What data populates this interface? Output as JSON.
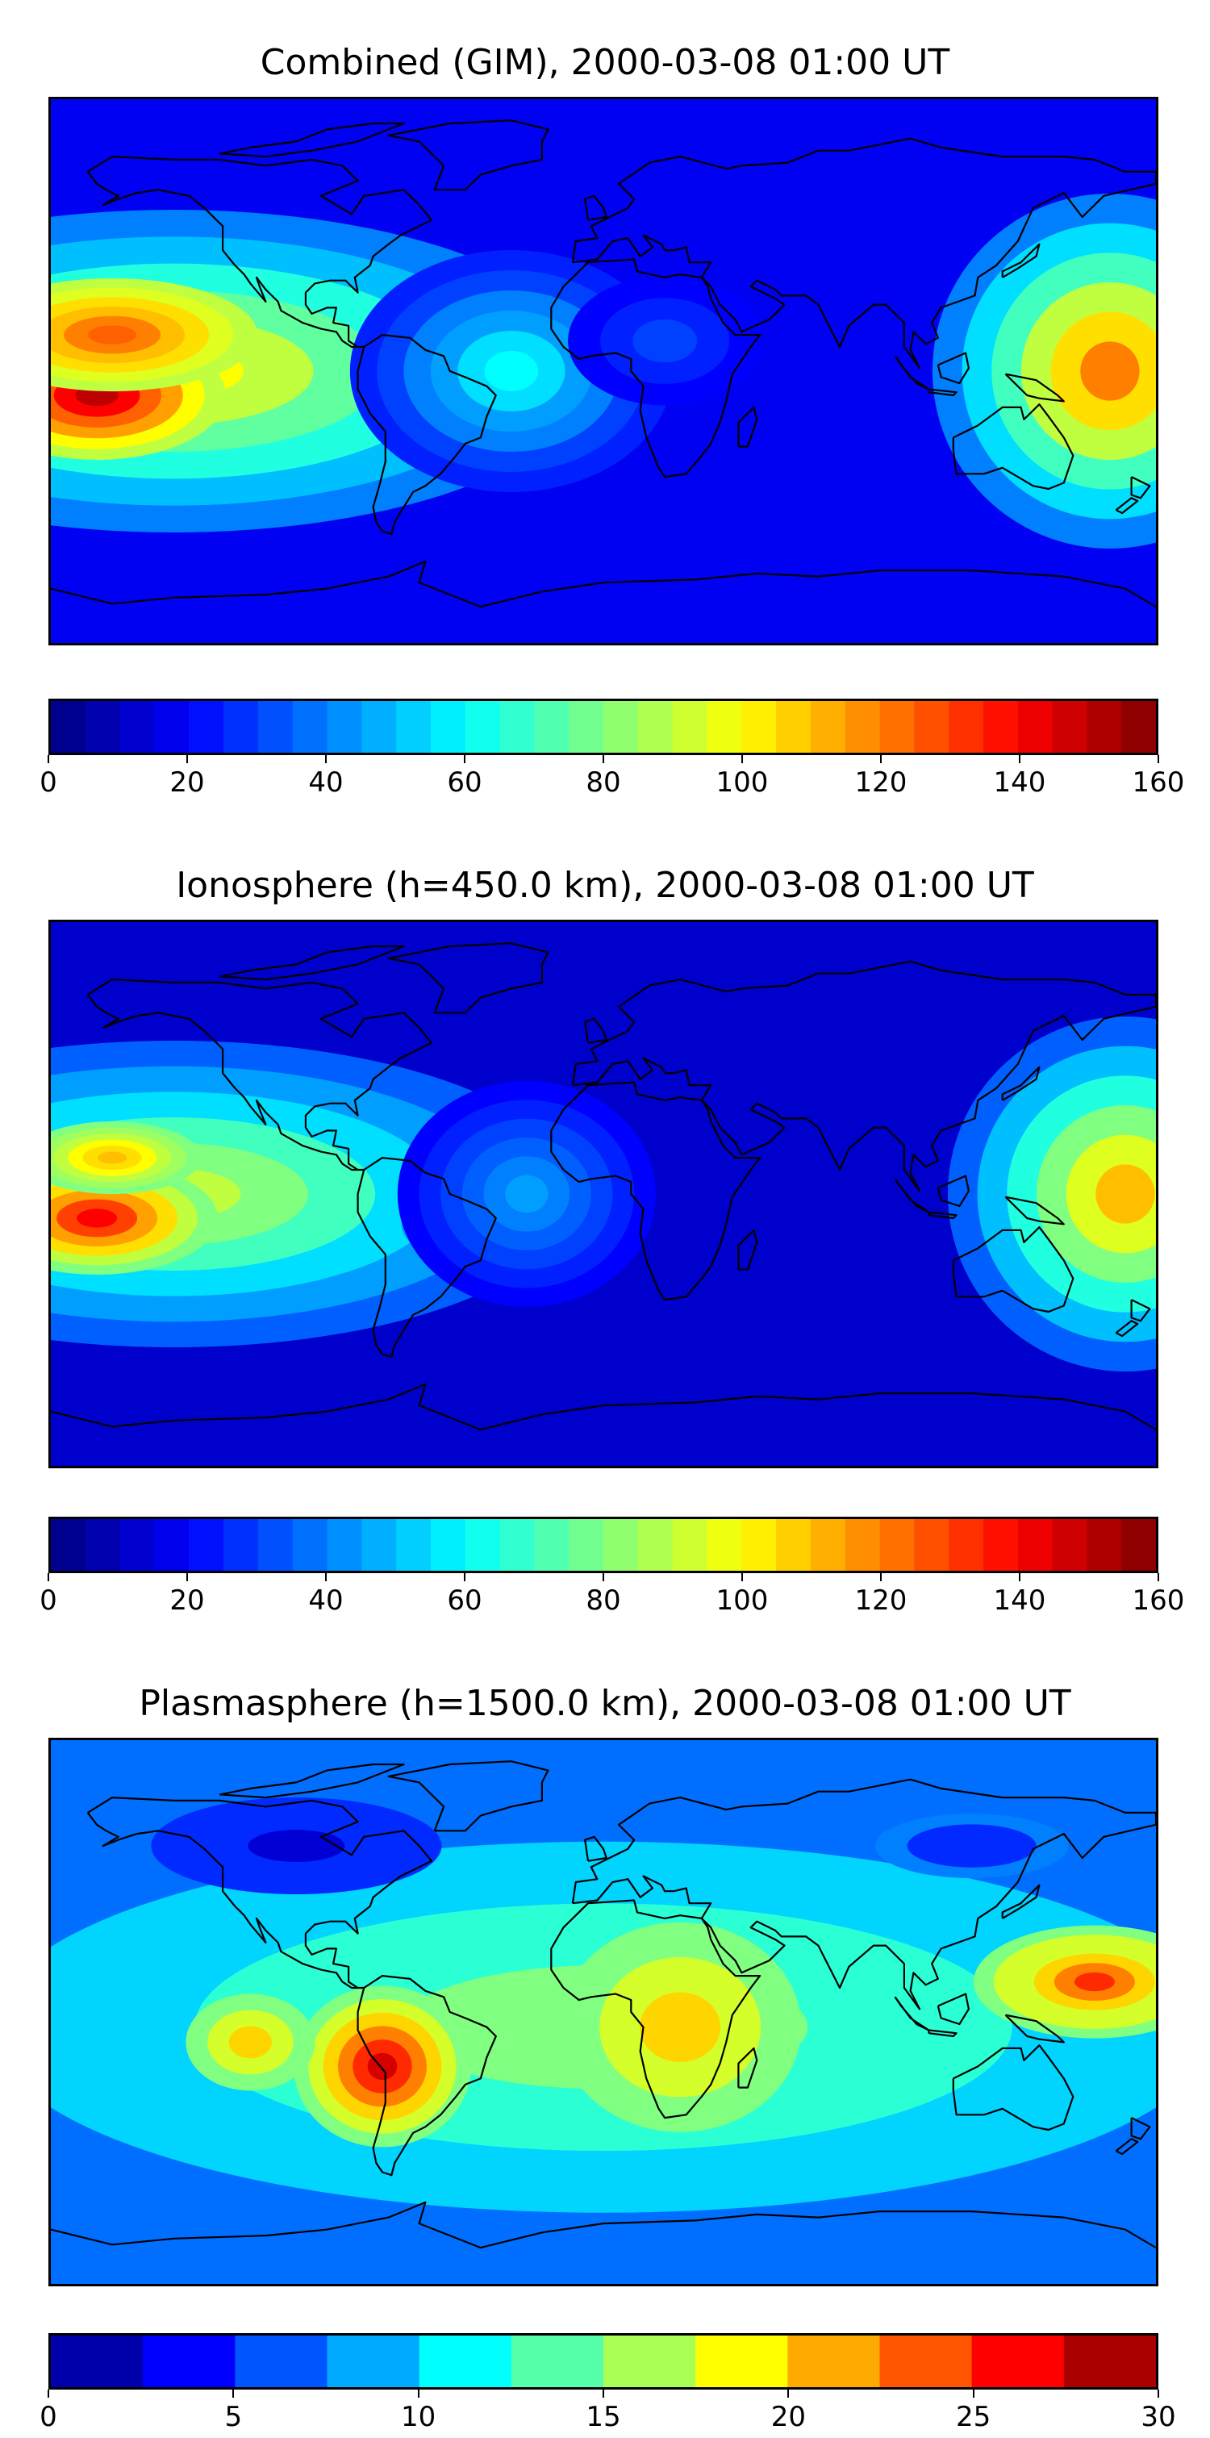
{
  "chart_data": [
    {
      "type": "heatmap",
      "title": "Combined (GIM), 2000-03-08 01:00 UT",
      "colorbar": {
        "range": [
          0,
          160
        ],
        "levels": 32,
        "ticks": [
          0,
          20,
          40,
          60,
          80,
          100,
          120,
          140,
          160
        ]
      },
      "colormap": "jet",
      "basemap": "world coastlines",
      "features": [
        {
          "name": "peak",
          "lon": -165,
          "lat": -8,
          "value": 150
        },
        {
          "name": "west-pacific-max",
          "lon": 165,
          "lat": 0,
          "value": 120
        },
        {
          "name": "band-south",
          "lon": -120,
          "lat": -12,
          "value": 100
        },
        {
          "name": "band-north",
          "lon": -120,
          "lat": 12,
          "value": 110
        }
      ]
    },
    {
      "type": "heatmap",
      "title": "Ionosphere  (h=450.0 km), 2000-03-08 01:00 UT",
      "colorbar": {
        "range": [
          0,
          160
        ],
        "levels": 32,
        "ticks": [
          0,
          20,
          40,
          60,
          80,
          100,
          120,
          140,
          160
        ]
      },
      "colormap": "jet",
      "basemap": "world coastlines",
      "features": [
        {
          "name": "peak",
          "lon": -165,
          "lat": -8,
          "value": 140
        },
        {
          "name": "west-pacific-max",
          "lon": 170,
          "lat": 0,
          "value": 110
        },
        {
          "name": "south-america-min",
          "lon": -50,
          "lat": -10,
          "value": 25
        }
      ]
    },
    {
      "type": "heatmap",
      "title": "Plasmasphere (h=1500.0 km), 2000-03-08 01:00 UT",
      "colorbar": {
        "range": [
          0,
          30
        ],
        "levels": 12,
        "ticks": [
          0,
          5,
          10,
          15,
          20,
          25,
          30
        ]
      },
      "colormap": "jet",
      "basemap": "world coastlines",
      "features": [
        {
          "name": "south-america-peak",
          "lon": -72,
          "lat": -18,
          "value": 28
        },
        {
          "name": "africa-max",
          "lon": 25,
          "lat": -5,
          "value": 21
        },
        {
          "name": "west-pacific-max",
          "lon": 160,
          "lat": 10,
          "value": 24
        },
        {
          "name": "east-pacific-max",
          "lon": -115,
          "lat": -10,
          "value": 21
        }
      ]
    }
  ]
}
